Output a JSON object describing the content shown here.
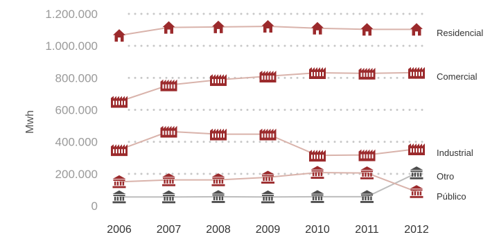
{
  "chart_data": {
    "type": "line",
    "title": "",
    "xlabel": "",
    "ylabel": "Mwh",
    "x": [
      "2006",
      "2007",
      "2008",
      "2009",
      "2010",
      "2011",
      "2012"
    ],
    "yticks": [
      "0",
      "200.000",
      "400.000",
      "600.000",
      "800.000",
      "1.000.000",
      "1.200.000"
    ],
    "ylim": [
      0,
      1200000
    ],
    "grid": "horizontal dotted",
    "legend": "labels at right end of each line",
    "series": [
      {
        "name": "Residencial",
        "icon": "house-icon",
        "color": "#9b2a2c",
        "line_color": "#d9b3ab",
        "values": [
          1065000,
          1115000,
          1118000,
          1122000,
          1110000,
          1103000,
          1103000
        ]
      },
      {
        "name": "Comercial",
        "icon": "factory-icon",
        "color": "#9b2a2c",
        "line_color": "#d9b3ab",
        "values": [
          652000,
          755000,
          788000,
          810000,
          832000,
          828000,
          833000
        ]
      },
      {
        "name": "Industrial",
        "icon": "factory-icon",
        "color": "#9b2a2c",
        "line_color": "#d9b3ab",
        "values": [
          350000,
          465000,
          448000,
          448000,
          315000,
          318000,
          355000
        ]
      },
      {
        "name": "Otro",
        "icon": "temple-icon",
        "color": "#4d4d4d",
        "line_color": "#bdbdbd",
        "values": [
          55000,
          55000,
          57000,
          55000,
          57000,
          57000,
          205000
        ]
      },
      {
        "name": "Público",
        "icon": "temple-icon",
        "color": "#9b2a2c",
        "line_color": "#d9b3ab",
        "values": [
          150000,
          162000,
          162000,
          178000,
          208000,
          205000,
          88000
        ]
      }
    ]
  }
}
